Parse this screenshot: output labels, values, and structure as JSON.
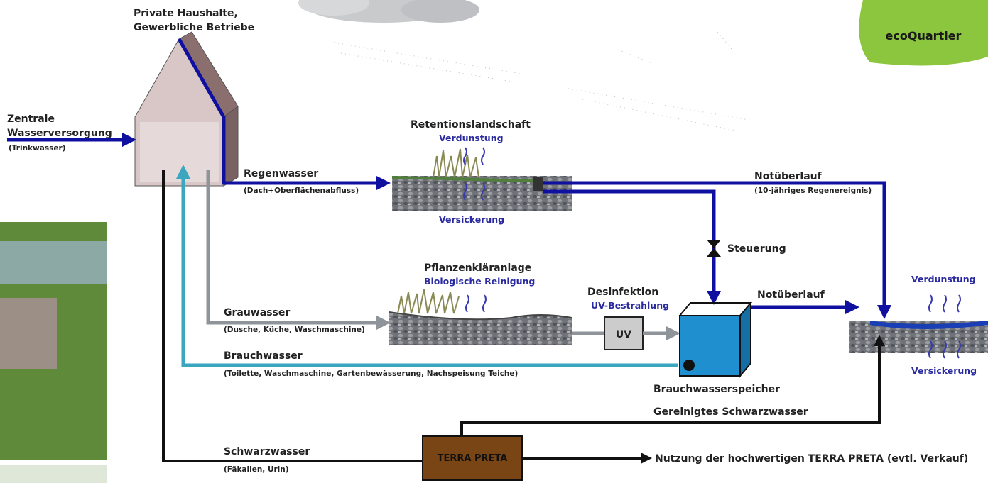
{
  "source": {
    "line1": "Zentrale",
    "line2": "Wasserversorgung",
    "note": "(Trinkwasser)"
  },
  "house": {
    "line1": "Private Haushalte,",
    "line2": "Gewerbliche Betriebe"
  },
  "retention": {
    "title": "Retentionslandschaft",
    "top": "Verdunstung",
    "bottom": "Versickerung"
  },
  "rain": {
    "label": "Regenwasser",
    "note": "(Dach+Oberflächenabfluss)"
  },
  "overflow_main": {
    "label": "Notüberlauf",
    "note": "(10-jähriges Regenereignis)"
  },
  "control": {
    "label": "Steuerung"
  },
  "plant": {
    "title": "Pflanzenkläranlage",
    "subtitle": "Biologische Reinigung"
  },
  "disinfection": {
    "title": "Desinfektion",
    "subtitle": "UV-Bestrahlung",
    "box": "UV"
  },
  "overflow_tank": {
    "label": "Notüberlauf"
  },
  "pond": {
    "top": "Verdunstung",
    "bottom": "Versickerung"
  },
  "greywater": {
    "label": "Grauwasser",
    "note": "(Dusche, Küche, Waschmaschine)"
  },
  "servicewater": {
    "label": "Brauchwasser",
    "note": "(Toilette, Waschmaschine, Gartenbewässerung, Nachspeisung Teiche)"
  },
  "storage": {
    "label": "Brauchwasserspeicher"
  },
  "cleaned": {
    "label": "Gereinigtes Schwarzwasser"
  },
  "blackwater": {
    "label": "Schwarzwasser",
    "note": "(Fäkalien, Urin)"
  },
  "terra_preta": {
    "label": "TERRA PRETA",
    "use": "Nutzung der hochwertigen TERRA PRETA (evtl. Verkauf)"
  },
  "logo": {
    "text": "ecoQuartier"
  }
}
